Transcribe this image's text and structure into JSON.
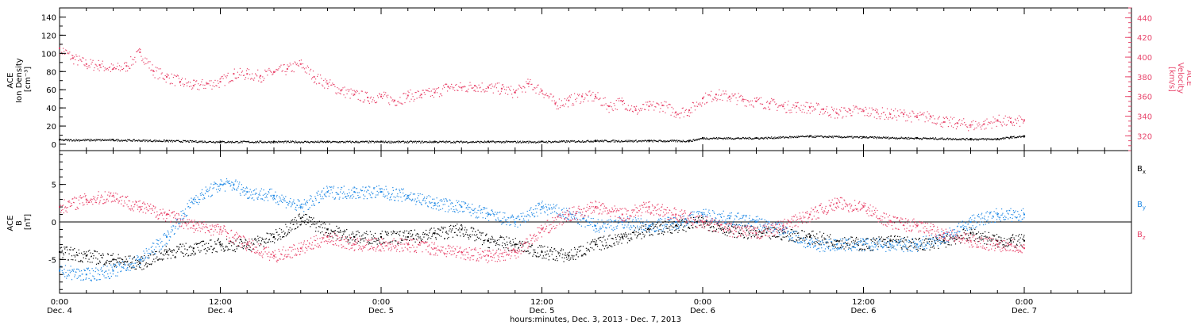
{
  "colors": {
    "axis": "#000000",
    "density": "#e8456b",
    "bx": "#000000",
    "by": "#1e88e5",
    "bz": "#e8456b"
  },
  "chart_data": [
    {
      "type": "scatter",
      "panel": "top",
      "ylabel_lines": [
        "ACE",
        "Ion Density",
        "[cm⁻³]"
      ],
      "ylabel_right_lines": [
        "ACE",
        "Velocity",
        "[km/s]"
      ],
      "ylim": [
        -7,
        150
      ],
      "yticks": [
        0,
        20,
        40,
        60,
        80,
        100,
        120,
        140
      ],
      "y2lim": [
        305,
        450
      ],
      "y2ticks": [
        320,
        340,
        360,
        380,
        400,
        420,
        440
      ],
      "x_hours_lim": [
        0,
        80
      ],
      "series": [
        {
          "axis": "right",
          "color_key": "density",
          "x_hours": [
            0,
            1,
            2,
            3,
            4,
            5,
            6,
            7,
            8,
            9,
            10,
            11,
            12,
            13,
            14,
            15,
            16,
            17,
            18,
            19,
            20,
            21,
            22,
            23,
            24,
            25,
            26,
            27,
            28,
            29,
            30,
            31,
            32,
            33,
            34,
            35,
            36,
            37,
            38,
            39,
            40,
            41,
            42,
            43,
            44,
            45,
            46,
            47,
            48,
            49,
            50,
            51,
            52,
            53,
            54,
            55,
            56,
            57,
            58,
            59,
            60,
            61,
            62,
            63,
            64,
            65,
            66,
            67,
            68,
            69,
            70,
            71,
            72
          ],
          "values": [
            409,
            399,
            393,
            392,
            388,
            391,
            405,
            386,
            380,
            375,
            371,
            373,
            375,
            383,
            383,
            381,
            385,
            388,
            393,
            380,
            373,
            366,
            362,
            359,
            360,
            356,
            361,
            362,
            364,
            370,
            369,
            371,
            369,
            368,
            364,
            373,
            366,
            353,
            356,
            360,
            360,
            350,
            355,
            346,
            350,
            351,
            344,
            346,
            358,
            362,
            360,
            357,
            355,
            353,
            350,
            350,
            349,
            347,
            343,
            346,
            345,
            344,
            342,
            342,
            339,
            340,
            334,
            333,
            331,
            332,
            336,
            334,
            336
          ]
        },
        {
          "axis": "left",
          "color_key": "bx",
          "x_hours": [
            0,
            4,
            8,
            12,
            16,
            20,
            24,
            28,
            32,
            36,
            40,
            44,
            47,
            48,
            52,
            56,
            60,
            64,
            68,
            70,
            71,
            72
          ],
          "values": [
            5,
            5,
            4,
            3,
            3,
            3,
            3,
            3,
            3,
            3,
            4,
            4,
            4,
            7,
            7,
            9,
            8,
            7,
            6,
            6,
            8,
            9
          ]
        }
      ]
    },
    {
      "type": "scatter",
      "panel": "bottom",
      "ylabel_lines": [
        "ACE",
        "B",
        "[nT]"
      ],
      "ylim": [
        -9.5,
        9.5
      ],
      "yticks": [
        -5,
        0,
        5
      ],
      "x_hours_lim": [
        0,
        80
      ],
      "series": [
        {
          "name": "Bx",
          "color_key": "bx",
          "x_hours": [
            0,
            2,
            4,
            6,
            8,
            10,
            12,
            14,
            16,
            18,
            20,
            22,
            24,
            26,
            28,
            30,
            32,
            34,
            36,
            38,
            40,
            42,
            44,
            46,
            48,
            50,
            52,
            54,
            56,
            58,
            60,
            62,
            64,
            66,
            68,
            70,
            71,
            72
          ],
          "values": [
            -4,
            -4.5,
            -5,
            -5.5,
            -4,
            -3.5,
            -3,
            -3,
            -2,
            0.5,
            -1,
            -2,
            -2,
            -2,
            -1.5,
            -1,
            -2.5,
            -3,
            -4,
            -4.5,
            -3,
            -2,
            -1,
            -0.5,
            0,
            -1,
            -1.5,
            -1.5,
            -2,
            -2.5,
            -3,
            -2.5,
            -3,
            -2.5,
            -1.5,
            -2.5,
            -2.5,
            -2.5
          ]
        },
        {
          "name": "By",
          "color_key": "by",
          "x_hours": [
            0,
            2,
            4,
            6,
            8,
            10,
            12,
            13,
            14,
            16,
            18,
            20,
            22,
            24,
            26,
            28,
            30,
            32,
            34,
            36,
            38,
            40,
            42,
            44,
            46,
            48,
            50,
            52,
            54,
            56,
            58,
            60,
            62,
            64,
            66,
            68,
            70,
            72
          ],
          "values": [
            -6.5,
            -7,
            -6.5,
            -5,
            -2,
            3,
            5,
            5,
            4,
            3.5,
            2,
            4,
            4,
            4,
            3.5,
            2.5,
            2,
            1,
            0,
            2,
            1,
            -0.5,
            0,
            -0.5,
            0,
            1,
            0.5,
            0,
            -1,
            -3,
            -3,
            -3,
            -3,
            -3,
            -2,
            0,
            1,
            1
          ]
        },
        {
          "name": "Bz",
          "color_key": "bz",
          "x_hours": [
            0,
            2,
            4,
            6,
            8,
            10,
            12,
            14,
            16,
            18,
            20,
            22,
            24,
            26,
            28,
            30,
            32,
            34,
            36,
            38,
            40,
            42,
            44,
            46,
            48,
            50,
            52,
            54,
            56,
            58,
            60,
            62,
            64,
            66,
            68,
            70,
            71,
            72
          ],
          "values": [
            2,
            3,
            3.5,
            2,
            1,
            -0.5,
            -1,
            -3,
            -4.5,
            -3.5,
            -2,
            -3,
            -3,
            -3,
            -3.5,
            -4,
            -4.5,
            -4,
            -1,
            1,
            2,
            1,
            2,
            1,
            0,
            -1,
            -1.5,
            -0.5,
            1,
            2.5,
            2,
            0,
            -0.5,
            -1.5,
            -2.5,
            -3,
            -3,
            -3.5
          ]
        }
      ]
    }
  ],
  "xaxis": {
    "tick_time": [
      "0:00",
      "12:00",
      "0:00",
      "12:00",
      "0:00",
      "12:00",
      "0:00"
    ],
    "tick_date": [
      "Dec. 4",
      "Dec. 4",
      "Dec. 5",
      "Dec. 5",
      "Dec. 6",
      "Dec. 6",
      "Dec. 7"
    ],
    "tick_hours": [
      0,
      12,
      24,
      36,
      48,
      60,
      72
    ],
    "label": "hours:minutes, Dec.  3, 2013 - Dec.  7, 2013"
  },
  "legend": {
    "bx": {
      "base": "B",
      "sub": "x"
    },
    "by": {
      "base": "B",
      "sub": "y"
    },
    "bz": {
      "base": "B",
      "sub": "z"
    }
  }
}
